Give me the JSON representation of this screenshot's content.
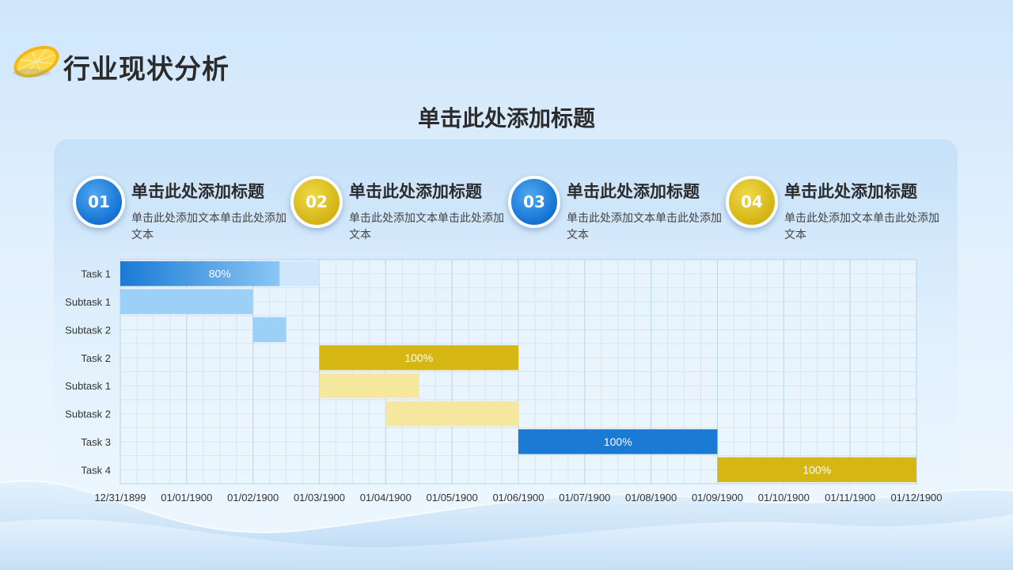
{
  "header": {
    "title": "行业现状分析",
    "subtitle": "单击此处添加标题"
  },
  "steps": [
    {
      "num": "01",
      "title": "单击此处添加标题",
      "text": "单击此处添加文本单击此处添加文本",
      "color": "blue"
    },
    {
      "num": "02",
      "title": "单击此处添加标题",
      "text": "单击此处添加文本单击此处添加文本",
      "color": "gold"
    },
    {
      "num": "03",
      "title": "单击此处添加标题",
      "text": "单击此处添加文本单击此处添加文本",
      "color": "blue"
    },
    {
      "num": "04",
      "title": "单击此处添加标题",
      "text": "单击此处添加文本单击此处添加文本",
      "color": "gold"
    }
  ],
  "colors": {
    "blue": "#1a7ad4",
    "light_blue": "#9dd0f7",
    "gold": "#d6b613",
    "light_gold": "#f6e79e"
  },
  "chart_data": {
    "type": "gantt",
    "x_ticks": [
      "12/31/1899",
      "01/01/1900",
      "01/02/1900",
      "01/03/1900",
      "01/04/1900",
      "01/05/1900",
      "01/06/1900",
      "01/07/1900",
      "01/08/1900",
      "01/09/1900",
      "01/10/1900",
      "01/11/1900",
      "01/12/1900"
    ],
    "xlim": [
      "12/31/1899",
      "01/12/1900"
    ],
    "grid": true,
    "tasks": [
      {
        "label": "Task 1",
        "start": "12/31/1899",
        "end": "01/03/1900",
        "progress": 0.8,
        "progress_label": "80%",
        "kind": "task",
        "group": "blue"
      },
      {
        "label": "Subtask 1",
        "start": "12/31/1899",
        "end": "01/02/1900",
        "kind": "subtask",
        "group": "blue"
      },
      {
        "label": "Subtask 2",
        "start": "01/02/1900",
        "end": "01/02/1900 12:00",
        "kind": "subtask",
        "group": "blue"
      },
      {
        "label": "Task 2",
        "start": "01/03/1900",
        "end": "01/06/1900",
        "progress": 1.0,
        "progress_label": "100%",
        "kind": "task",
        "group": "gold"
      },
      {
        "label": "Subtask 1",
        "start": "01/03/1900",
        "end": "01/04/1900 12:00",
        "kind": "subtask",
        "group": "gold"
      },
      {
        "label": "Subtask 2",
        "start": "01/04/1900",
        "end": "01/06/1900",
        "kind": "subtask",
        "group": "gold"
      },
      {
        "label": "Task 3",
        "start": "01/06/1900",
        "end": "01/09/1900",
        "progress": 1.0,
        "progress_label": "100%",
        "kind": "task",
        "group": "blue"
      },
      {
        "label": "Task 4",
        "start": "01/09/1900",
        "end": "01/12/1900",
        "progress": 1.0,
        "progress_label": "100%",
        "kind": "task",
        "group": "gold"
      }
    ]
  }
}
